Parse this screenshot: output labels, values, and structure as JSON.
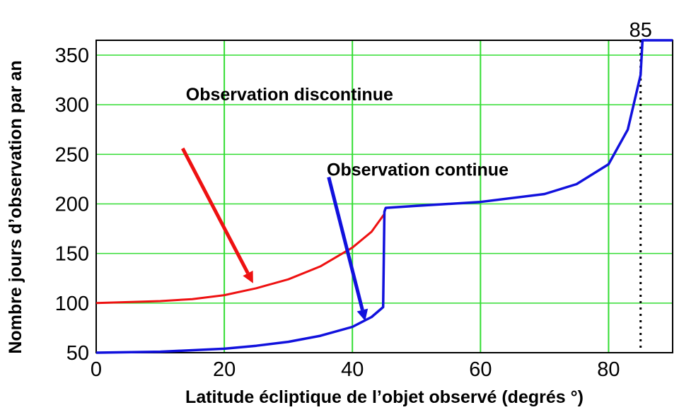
{
  "chart_data": {
    "type": "line",
    "title": "",
    "xlabel": "Latitude écliptique de l’objet observé (degrés °)",
    "ylabel": "Nombre jours d’observation par an",
    "xlim": [
      0,
      90
    ],
    "ylim": [
      50,
      365
    ],
    "x_ticks": [
      0,
      20,
      40,
      60,
      80
    ],
    "y_ticks": [
      50,
      100,
      150,
      200,
      250,
      300,
      350
    ],
    "grid": true,
    "grid_color": "#33dd33",
    "series": [
      {
        "name": "Observation discontinue",
        "color": "#ee1111",
        "x": [
          0,
          5,
          10,
          15,
          20,
          25,
          30,
          35,
          40,
          43,
          45
        ],
        "y": [
          100,
          101,
          102,
          104,
          108,
          115,
          124,
          137,
          156,
          172,
          190
        ]
      },
      {
        "name": "Observation continue",
        "color": "#1111dd",
        "x": [
          0,
          10,
          20,
          25,
          30,
          35,
          40,
          43,
          44.8,
          45,
          45.2,
          50,
          60,
          70,
          75,
          80,
          83,
          85,
          85.3,
          90
        ],
        "y": [
          50,
          51,
          54,
          57,
          61,
          67,
          76,
          86,
          96,
          192,
          196,
          198,
          202,
          210,
          220,
          240,
          275,
          330,
          365,
          365
        ]
      }
    ],
    "annotations": [
      {
        "text": "Observation discontinue",
        "x": 14,
        "y": 311,
        "color": "#000000"
      },
      {
        "text": "Observation continue",
        "x": 36,
        "y": 235,
        "color": "#000000"
      },
      {
        "text": "85",
        "x": 85,
        "y": 375,
        "color": "#000000"
      }
    ],
    "arrows": [
      {
        "from": [
          13.5,
          256
        ],
        "to": [
          24.5,
          120
        ],
        "color": "#ee1111"
      },
      {
        "from": [
          36.3,
          227
        ],
        "to": [
          42,
          82
        ],
        "color": "#1111dd"
      }
    ],
    "reference_line": {
      "x": 85,
      "style": "dotted",
      "color": "#000000"
    }
  }
}
